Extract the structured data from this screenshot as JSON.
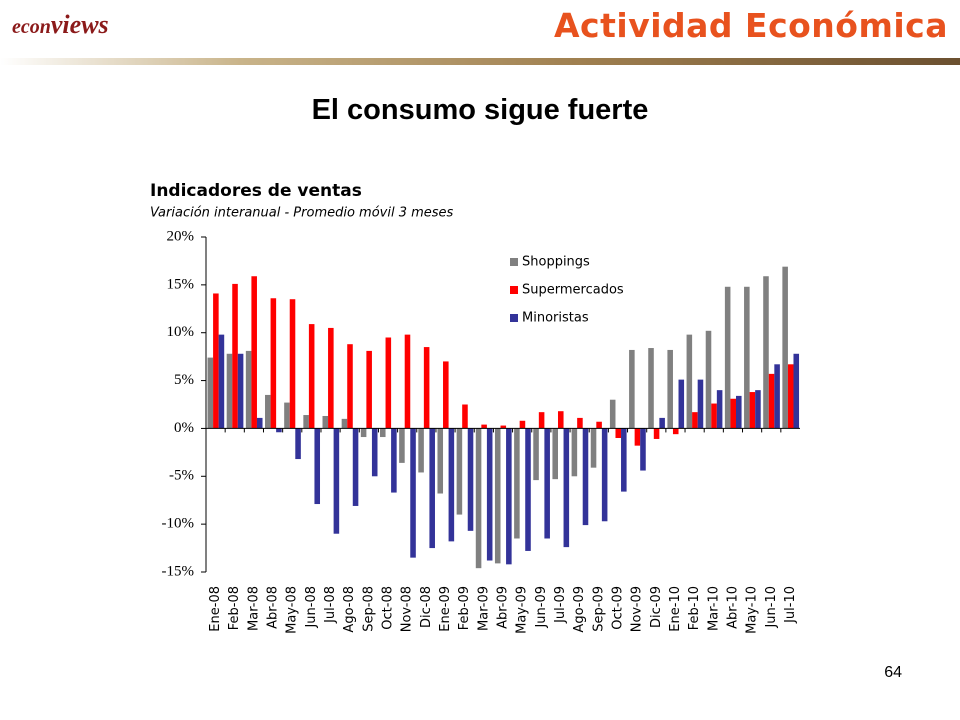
{
  "logo": {
    "part1": "econ",
    "part2": "views"
  },
  "header": {
    "title": "Actividad Económica"
  },
  "slide_title": "El consumo sigue fuerte",
  "page_number": "64",
  "chart_data": {
    "type": "bar",
    "title": "Indicadores de ventas",
    "subtitle": "Variación interanual - Promedio móvil 3 meses",
    "categories": [
      "Ene-08",
      "Feb-08",
      "Mar-08",
      "Abr-08",
      "May-08",
      "Jun-08",
      "Jul-08",
      "Ago-08",
      "Sep-08",
      "Oct-08",
      "Nov-08",
      "Dic-08",
      "Ene-09",
      "Feb-09",
      "Mar-09",
      "Abr-09",
      "May-09",
      "Jun-09",
      "Jul-09",
      "Ago-09",
      "Sep-09",
      "Oct-09",
      "Nov-09",
      "Dic-09",
      "Ene-10",
      "Feb-10",
      "Mar-10",
      "Abr-10",
      "May-10",
      "Jun-10",
      "Jul-10"
    ],
    "series": [
      {
        "name": "Shoppings",
        "color": "#808080",
        "values": [
          7.4,
          7.8,
          8.1,
          3.5,
          2.7,
          1.4,
          1.3,
          1.0,
          -0.9,
          -0.9,
          -3.6,
          -4.6,
          -6.8,
          -9.0,
          -14.6,
          -14.1,
          -11.5,
          -5.4,
          -5.3,
          -5.0,
          -4.1,
          3.0,
          8.2,
          8.4,
          8.2,
          9.8,
          10.2,
          14.8,
          14.8,
          15.9,
          16.9
        ]
      },
      {
        "name": "Supermercados",
        "color": "#ff0000",
        "values": [
          14.1,
          15.1,
          15.9,
          13.6,
          13.5,
          10.9,
          10.5,
          8.8,
          8.1,
          9.5,
          9.8,
          8.5,
          7.0,
          2.5,
          0.4,
          0.3,
          0.8,
          1.7,
          1.8,
          1.1,
          0.7,
          -1.0,
          -1.8,
          -1.1,
          -0.6,
          1.7,
          2.6,
          3.1,
          3.8,
          5.7,
          6.7
        ]
      },
      {
        "name": "Minoristas",
        "color": "#333399",
        "values": [
          9.8,
          7.8,
          1.1,
          -0.4,
          -3.2,
          -7.9,
          -11.0,
          -8.1,
          -5.0,
          -6.7,
          -13.5,
          -12.5,
          -11.8,
          -10.7,
          -13.8,
          -14.2,
          -12.8,
          -11.5,
          -12.4,
          -10.1,
          -9.7,
          -6.6,
          -4.4,
          1.1,
          5.1,
          5.1,
          4.0,
          3.4,
          4.0,
          6.7,
          7.8
        ]
      }
    ],
    "ylim": [
      -15,
      20
    ],
    "yticks": [
      {
        "value": -15,
        "label": "-15%"
      },
      {
        "value": -10,
        "label": "-10%"
      },
      {
        "value": -5,
        "label": "-5%"
      },
      {
        "value": 0,
        "label": "0%"
      },
      {
        "value": 5,
        "label": "5%"
      },
      {
        "value": 10,
        "label": "10%"
      },
      {
        "value": 15,
        "label": "15%"
      },
      {
        "value": 20,
        "label": "20%"
      }
    ],
    "grid": false,
    "legend": "upper-right"
  }
}
